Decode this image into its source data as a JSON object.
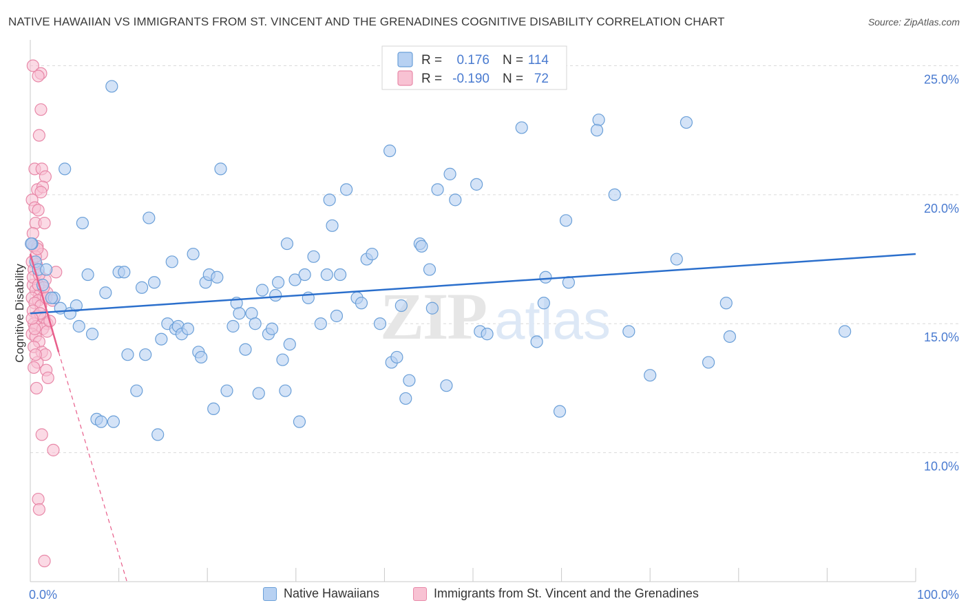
{
  "title": "NATIVE HAWAIIAN VS IMMIGRANTS FROM ST. VINCENT AND THE GRENADINES COGNITIVE DISABILITY CORRELATION CHART",
  "source": "Source: ZipAtlas.com",
  "watermark": "ZIPatlas",
  "colors": {
    "blue_fill": "#b7d1f2",
    "blue_stroke": "#6a9fd8",
    "blue_line": "#2b6fcc",
    "pink_fill": "#f8c2d3",
    "pink_stroke": "#e888a8",
    "pink_line": "#e85d8a",
    "axis_text": "#4a7bd0",
    "grid": "#d9d9d9"
  },
  "stats": [
    {
      "r_label": "R =",
      "r_value": "0.176",
      "n_label": "N =",
      "n_value": "114"
    },
    {
      "r_label": "R =",
      "r_value": "-0.190",
      "n_label": "N =",
      "n_value": "72"
    }
  ],
  "legend": [
    "Native Hawaiians",
    "Immigrants from St. Vincent and the Grenadines"
  ],
  "chart_data": {
    "type": "scatter",
    "title": "NATIVE HAWAIIAN VS IMMIGRANTS FROM ST. VINCENT AND THE GRENADINES COGNITIVE DISABILITY CORRELATION CHART",
    "xlabel": "",
    "ylabel": "Cognitive Disability",
    "xlim": [
      0,
      100
    ],
    "ylim": [
      5.0,
      26.0
    ],
    "x_tick_labels": [
      "0.0%",
      "100.0%"
    ],
    "y_ticks": [
      10,
      15,
      20,
      25
    ],
    "y_tick_labels": [
      "10.0%",
      "15.0%",
      "20.0%",
      "25.0%"
    ],
    "series": [
      {
        "name": "Native Hawaiians",
        "trend": [
          [
            0,
            15.4
          ],
          [
            100,
            17.7
          ]
        ],
        "points": [
          [
            0.2,
            18.1
          ],
          [
            0.6,
            17.4
          ],
          [
            0.9,
            17.1
          ],
          [
            1.4,
            16.5
          ],
          [
            1.8,
            17.1
          ],
          [
            2.7,
            16.0
          ],
          [
            3.4,
            15.6
          ],
          [
            3.9,
            21.0
          ],
          [
            4.5,
            15.4
          ],
          [
            5.2,
            15.7
          ],
          [
            5.5,
            14.9
          ],
          [
            5.9,
            18.9
          ],
          [
            6.5,
            16.9
          ],
          [
            7.0,
            14.6
          ],
          [
            7.5,
            11.3
          ],
          [
            8.0,
            11.2
          ],
          [
            8.5,
            16.2
          ],
          [
            9.2,
            24.2
          ],
          [
            9.4,
            11.2
          ],
          [
            10.0,
            17.0
          ],
          [
            10.6,
            17.0
          ],
          [
            11.0,
            13.8
          ],
          [
            12.0,
            12.4
          ],
          [
            12.6,
            16.4
          ],
          [
            13.0,
            13.8
          ],
          [
            13.4,
            19.1
          ],
          [
            14.0,
            16.6
          ],
          [
            14.4,
            10.7
          ],
          [
            14.8,
            14.4
          ],
          [
            15.5,
            15.0
          ],
          [
            16.0,
            17.4
          ],
          [
            16.4,
            14.8
          ],
          [
            16.7,
            14.9
          ],
          [
            17.1,
            14.6
          ],
          [
            17.8,
            14.8
          ],
          [
            18.4,
            17.7
          ],
          [
            19.0,
            13.9
          ],
          [
            19.3,
            13.7
          ],
          [
            19.8,
            16.6
          ],
          [
            20.2,
            16.9
          ],
          [
            20.7,
            11.7
          ],
          [
            21.1,
            16.8
          ],
          [
            21.5,
            21.0
          ],
          [
            22.2,
            12.4
          ],
          [
            22.9,
            14.9
          ],
          [
            23.3,
            15.8
          ],
          [
            23.6,
            15.4
          ],
          [
            24.3,
            14.0
          ],
          [
            25.0,
            15.4
          ],
          [
            25.4,
            15.0
          ],
          [
            25.8,
            12.3
          ],
          [
            26.2,
            16.3
          ],
          [
            26.9,
            14.6
          ],
          [
            27.3,
            14.8
          ],
          [
            27.7,
            16.1
          ],
          [
            28.0,
            16.6
          ],
          [
            28.5,
            13.6
          ],
          [
            29.0,
            18.1
          ],
          [
            29.3,
            14.2
          ],
          [
            29.9,
            16.7
          ],
          [
            30.4,
            11.2
          ],
          [
            31.0,
            16.9
          ],
          [
            31.4,
            16.0
          ],
          [
            32.0,
            17.6
          ],
          [
            32.8,
            15.0
          ],
          [
            33.5,
            16.9
          ],
          [
            33.8,
            19.8
          ],
          [
            34.1,
            18.8
          ],
          [
            34.6,
            15.3
          ],
          [
            35.0,
            16.9
          ],
          [
            35.7,
            20.2
          ],
          [
            36.9,
            16.0
          ],
          [
            37.4,
            15.8
          ],
          [
            38.0,
            17.5
          ],
          [
            38.6,
            17.7
          ],
          [
            39.5,
            15.0
          ],
          [
            40.6,
            21.7
          ],
          [
            40.8,
            13.5
          ],
          [
            41.4,
            13.7
          ],
          [
            41.9,
            15.7
          ],
          [
            42.4,
            12.1
          ],
          [
            42.8,
            12.8
          ],
          [
            44.0,
            18.1
          ],
          [
            44.2,
            18.0
          ],
          [
            45.1,
            17.1
          ],
          [
            45.4,
            15.6
          ],
          [
            46.0,
            20.2
          ],
          [
            47.0,
            12.6
          ],
          [
            47.4,
            20.8
          ],
          [
            48.0,
            19.8
          ],
          [
            50.4,
            20.4
          ],
          [
            50.8,
            14.7
          ],
          [
            51.6,
            14.6
          ],
          [
            55.5,
            22.6
          ],
          [
            57.2,
            14.3
          ],
          [
            58.0,
            15.8
          ],
          [
            58.2,
            16.8
          ],
          [
            59.8,
            11.6
          ],
          [
            60.5,
            19.0
          ],
          [
            60.8,
            16.6
          ],
          [
            64.2,
            22.9
          ],
          [
            64.0,
            22.5
          ],
          [
            66.0,
            20.0
          ],
          [
            67.6,
            14.7
          ],
          [
            70.0,
            13.0
          ],
          [
            73.0,
            17.5
          ],
          [
            74.1,
            22.8
          ],
          [
            76.6,
            13.5
          ],
          [
            78.6,
            15.8
          ],
          [
            79.0,
            14.5
          ],
          [
            92.0,
            14.7
          ],
          [
            0.1,
            18.1
          ],
          [
            28.8,
            12.4
          ],
          [
            2.4,
            16.0
          ]
        ]
      },
      {
        "name": "Immigrants from St. Vincent and the Grenadines",
        "trend": [
          [
            0,
            17.7
          ],
          [
            3.2,
            13.9
          ]
        ],
        "trend_extension": [
          [
            3.2,
            13.9
          ],
          [
            11.0,
            4.9
          ]
        ],
        "points": [
          [
            0.3,
            25.0
          ],
          [
            1.2,
            24.7
          ],
          [
            0.9,
            24.6
          ],
          [
            1.2,
            23.3
          ],
          [
            1.0,
            22.3
          ],
          [
            0.5,
            21.0
          ],
          [
            1.3,
            21.0
          ],
          [
            1.7,
            20.7
          ],
          [
            0.8,
            20.2
          ],
          [
            1.4,
            20.3
          ],
          [
            1.2,
            20.1
          ],
          [
            0.2,
            19.8
          ],
          [
            0.5,
            19.5
          ],
          [
            0.9,
            19.4
          ],
          [
            0.6,
            18.9
          ],
          [
            1.6,
            18.9
          ],
          [
            0.3,
            18.5
          ],
          [
            0.1,
            18.1
          ],
          [
            0.4,
            18.0
          ],
          [
            0.8,
            18.0
          ],
          [
            1.3,
            17.7
          ],
          [
            0.2,
            17.4
          ],
          [
            0.7,
            17.3
          ],
          [
            0.4,
            17.1
          ],
          [
            2.9,
            17.0
          ],
          [
            1.7,
            16.7
          ],
          [
            0.3,
            16.5
          ],
          [
            0.6,
            16.3
          ],
          [
            1.9,
            16.2
          ],
          [
            1.0,
            16.1
          ],
          [
            1.4,
            16.0
          ],
          [
            0.2,
            16.0
          ],
          [
            0.9,
            15.9
          ],
          [
            0.5,
            15.8
          ],
          [
            1.2,
            15.7
          ],
          [
            2.5,
            15.9
          ],
          [
            0.3,
            15.5
          ],
          [
            0.8,
            15.3
          ],
          [
            1.6,
            15.2
          ],
          [
            0.4,
            15.0
          ],
          [
            1.9,
            15.0
          ],
          [
            0.7,
            14.9
          ],
          [
            1.4,
            14.8
          ],
          [
            1.9,
            14.7
          ],
          [
            0.2,
            14.6
          ],
          [
            2.2,
            15.1
          ],
          [
            0.6,
            14.5
          ],
          [
            1.0,
            14.3
          ],
          [
            0.4,
            14.1
          ],
          [
            1.3,
            13.9
          ],
          [
            1.7,
            13.8
          ],
          [
            0.8,
            13.5
          ],
          [
            0.4,
            13.3
          ],
          [
            1.8,
            13.2
          ],
          [
            2.0,
            12.9
          ],
          [
            0.7,
            12.5
          ],
          [
            1.3,
            10.7
          ],
          [
            2.6,
            10.1
          ],
          [
            0.9,
            8.2
          ],
          [
            1.0,
            7.8
          ],
          [
            1.6,
            5.8
          ],
          [
            0.3,
            16.8
          ],
          [
            0.6,
            17.6
          ],
          [
            0.9,
            16.5
          ],
          [
            1.1,
            15.4
          ],
          [
            0.5,
            14.8
          ],
          [
            1.5,
            16.4
          ],
          [
            0.8,
            17.9
          ],
          [
            0.2,
            15.2
          ],
          [
            1.8,
            16.0
          ],
          [
            0.6,
            13.8
          ],
          [
            1.0,
            16.9
          ]
        ]
      }
    ]
  }
}
